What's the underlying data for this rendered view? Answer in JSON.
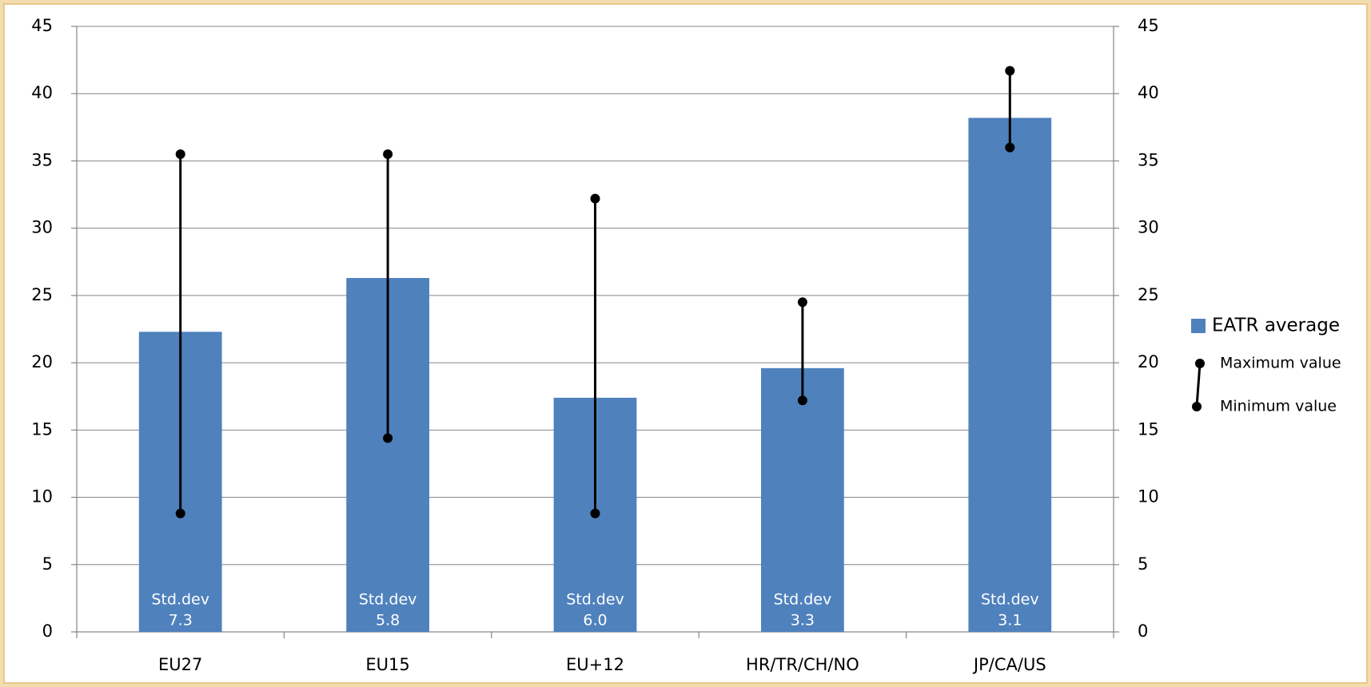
{
  "chart_data": {
    "type": "bar",
    "categories": [
      "EU27",
      "EU15",
      "EU+12",
      "HR/TR/CH/NO",
      "JP/CA/US"
    ],
    "series": [
      {
        "name": "EATR average",
        "color": "#4f81bd",
        "values": [
          22.3,
          26.3,
          17.4,
          19.6,
          38.2
        ]
      },
      {
        "name": "Maximum value",
        "color": "#000000",
        "values": [
          35.5,
          35.5,
          32.2,
          24.5,
          41.7
        ]
      },
      {
        "name": "Minimum value",
        "color": "#000000",
        "values": [
          8.8,
          14.4,
          8.8,
          17.2,
          36.0
        ]
      }
    ],
    "std_dev": {
      "name": "Std.dev",
      "values": [
        7.3,
        5.8,
        6.0,
        3.3,
        3.1
      ],
      "value_labels": [
        "7.3",
        "5.8",
        "6.0",
        "3.3",
        "3.1"
      ]
    },
    "ylim": [
      0,
      45
    ],
    "yticks": [
      0,
      5,
      10,
      15,
      20,
      25,
      30,
      35,
      40,
      45
    ],
    "y2lim": [
      0,
      45
    ],
    "y2ticks": [
      0,
      5,
      10,
      15,
      20,
      25,
      30,
      35,
      40,
      45
    ],
    "grid": true,
    "legend": "right"
  }
}
